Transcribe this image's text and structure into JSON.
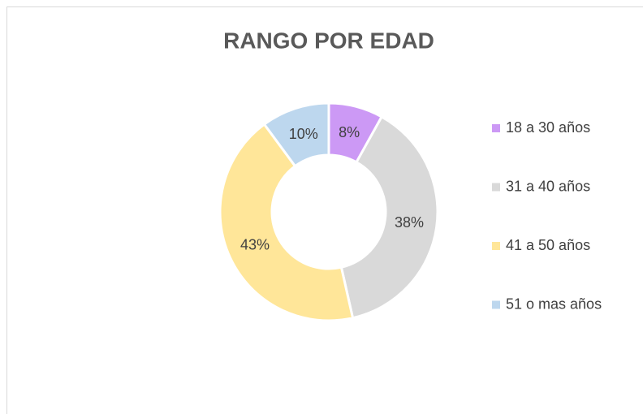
{
  "chart_data": {
    "type": "donut",
    "title": "RANGO POR EDAD",
    "categories": [
      "18 a 30 años",
      "31 a 40 años",
      "41 a 50 años",
      "51 o mas años"
    ],
    "values": [
      8,
      38,
      43,
      10
    ],
    "colors": [
      "#cc99f5",
      "#d9d9d9",
      "#ffe699",
      "#bdd7ee"
    ],
    "legend": "right"
  }
}
